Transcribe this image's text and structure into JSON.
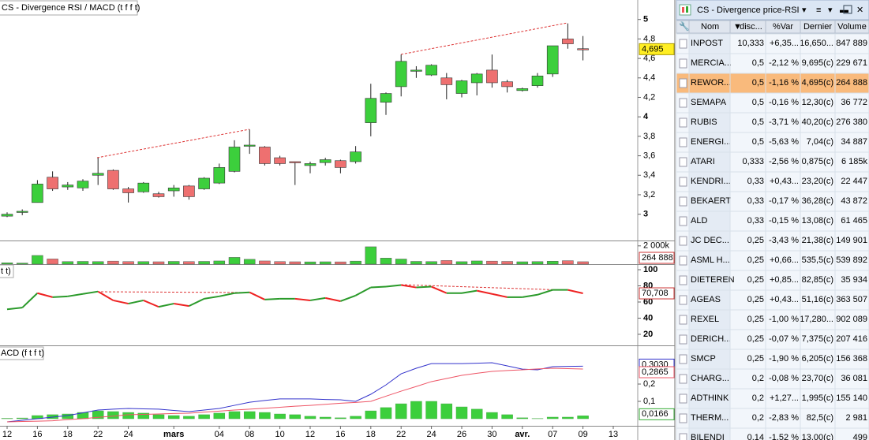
{
  "chart_data": [
    {
      "type": "candlestick",
      "title": "CS - Divergence RSI / MACD (t f f t)",
      "categories": [
        "12",
        null,
        "16",
        null,
        "18",
        null,
        "22",
        null,
        "24",
        null,
        null,
        "mars",
        null,
        null,
        "04",
        null,
        "08",
        null,
        "10",
        null,
        "12",
        null,
        "16",
        null,
        "18",
        null,
        "22",
        null,
        "24",
        null,
        "26",
        null,
        "30",
        null,
        "avr.",
        null,
        "07",
        null,
        "09",
        null,
        "13"
      ],
      "open": [
        2.98,
        3.02,
        3.12,
        3.38,
        3.28,
        3.27,
        3.4,
        3.45,
        3.26,
        3.23,
        3.21,
        3.24,
        3.29,
        3.26,
        3.32,
        3.44,
        3.7,
        3.69,
        3.58,
        3.54,
        3.5,
        3.53,
        3.55,
        3.54,
        3.94,
        4.15,
        4.31,
        4.47,
        4.43,
        4.4,
        4.24,
        4.35,
        4.48,
        4.36,
        4.27,
        4.32,
        4.44,
        4.8,
        4.7,
        null,
        null
      ],
      "high": [
        3.02,
        3.05,
        3.35,
        3.44,
        3.33,
        3.36,
        3.58,
        3.46,
        3.28,
        3.33,
        3.23,
        3.3,
        3.3,
        3.38,
        3.52,
        3.76,
        3.87,
        3.7,
        3.6,
        3.54,
        3.54,
        3.58,
        3.56,
        3.7,
        4.34,
        4.25,
        4.64,
        4.52,
        4.54,
        4.45,
        4.38,
        4.45,
        4.64,
        4.38,
        4.3,
        4.45,
        4.73,
        4.96,
        4.83,
        null,
        null
      ],
      "low": [
        2.97,
        2.99,
        3.12,
        3.24,
        3.25,
        3.24,
        3.3,
        3.25,
        3.12,
        3.22,
        3.17,
        3.18,
        3.15,
        3.25,
        3.31,
        3.43,
        3.62,
        3.5,
        3.5,
        3.3,
        3.42,
        3.5,
        3.42,
        3.52,
        3.8,
        4.02,
        4.21,
        4.4,
        4.42,
        4.18,
        4.2,
        4.22,
        4.3,
        4.25,
        4.26,
        4.3,
        4.41,
        4.7,
        4.58,
        null,
        null
      ],
      "close": [
        3.0,
        3.03,
        3.31,
        3.26,
        3.3,
        3.34,
        3.42,
        3.26,
        3.22,
        3.32,
        3.18,
        3.27,
        3.18,
        3.37,
        3.48,
        3.69,
        3.71,
        3.52,
        3.52,
        3.53,
        3.52,
        3.56,
        3.48,
        3.64,
        4.19,
        4.24,
        4.57,
        4.48,
        4.53,
        4.33,
        4.37,
        4.44,
        4.35,
        4.31,
        4.29,
        4.42,
        4.73,
        4.75,
        4.695,
        null,
        null
      ],
      "last_label": "4,695",
      "up_color": "#3ccf3c",
      "down_color": "#ee7070",
      "ylim": [
        2.73,
        5.2
      ],
      "yticks": [
        3,
        {
          "value": 3.2,
          "label": "3,2"
        },
        {
          "value": 3.4,
          "label": "3,4"
        },
        {
          "value": 3.6,
          "label": "3,6"
        },
        {
          "value": 3.8,
          "label": "3,8"
        },
        4,
        {
          "value": 4.2,
          "label": "4,2"
        },
        {
          "value": 4.4,
          "label": "4,4"
        },
        {
          "value": 4.6,
          "label": "4,6"
        },
        {
          "value": 4.8,
          "label": "4,8"
        },
        5
      ]
    },
    {
      "type": "bar",
      "values": [
        150000,
        120000,
        950000,
        570000,
        280000,
        300000,
        280000,
        330000,
        280000,
        280000,
        260000,
        300000,
        280000,
        300000,
        350000,
        740000,
        530000,
        350000,
        280000,
        260000,
        250000,
        260000,
        250000,
        330000,
        1900000,
        660000,
        560000,
        300000,
        280000,
        400000,
        270000,
        350000,
        330000,
        300000,
        260000,
        280000,
        320000,
        380000,
        264888
      ],
      "last_label": "264 888",
      "ylim": [
        0,
        2500000
      ],
      "yticks": [
        {
          "value": 2000000,
          "label": "2 000k"
        }
      ]
    },
    {
      "type": "line",
      "title": "t t)",
      "values": [
        51,
        53,
        71,
        66,
        67,
        70,
        73,
        62,
        58,
        62,
        54,
        58,
        55,
        64,
        67,
        71,
        72,
        63,
        64,
        64,
        62,
        65,
        61,
        68,
        78,
        79,
        81,
        78,
        79,
        71,
        71,
        74,
        70,
        66,
        66,
        69,
        75,
        75,
        70.708
      ],
      "last_label": "70,708",
      "up_color": "#2a9a2a",
      "down_color": "#ee2222",
      "ylim": [
        6.3,
        104.9
      ],
      "yticks": [
        20,
        40,
        60,
        80,
        100
      ]
    },
    {
      "type": "macd",
      "title": "ACD (f t f t)",
      "series": [
        {
          "color": "#3333cc",
          "last_label": "0,3030",
          "values": [
            -0.018,
            -0.009,
            0,
            0.009,
            0.018,
            0.034,
            0.05,
            0.055,
            0.059,
            0.057,
            0.055,
            0.048,
            0.041,
            0.05,
            0.059,
            0.077,
            0.095,
            0.105,
            0.114,
            0.114,
            0.114,
            0.111,
            0.109,
            0.1,
            0.141,
            0.195,
            0.259,
            0.291,
            0.318,
            0.318,
            0.318,
            0.32,
            0.323,
            0.305,
            0.286,
            0.282,
            0.3,
            0.302,
            0.303
          ]
        },
        {
          "color": "#ee5566",
          "last_label": "0,2865",
          "values": [
            -0.018,
            -0.016,
            -0.014,
            -0.012,
            -0.005,
            0,
            0.008,
            0.015,
            0.023,
            0.025,
            0.027,
            0.03,
            0.032,
            0.038,
            0.044,
            0.05,
            0.055,
            0.06,
            0.066,
            0.072,
            0.077,
            0.083,
            0.089,
            0.094,
            0.1,
            0.13,
            0.159,
            0.186,
            0.214,
            0.232,
            0.25,
            0.262,
            0.273,
            0.278,
            0.282,
            0.287,
            0.291,
            0.289,
            0.2865
          ]
        }
      ],
      "histogram": {
        "color": "#3ccf3c",
        "last_label": "0,0166",
        "values": [
          0.002,
          0.004,
          0.018,
          0.023,
          0.027,
          0.036,
          0.045,
          0.041,
          0.036,
          0.032,
          0.023,
          0.018,
          0.014,
          0.023,
          0.032,
          0.041,
          0.041,
          0.036,
          0.027,
          0.023,
          0.014,
          0.009,
          0.005,
          0.014,
          0.045,
          0.064,
          0.086,
          0.1,
          0.1,
          0.086,
          0.068,
          0.055,
          0.036,
          0.023,
          0.005,
          0.001,
          0.009,
          0.009,
          0.0166
        ]
      },
      "ylim": [
        -0.041,
        0.414
      ],
      "yticks": [
        {
          "value": 0.1,
          "label": "0,1"
        },
        {
          "value": 0.2,
          "label": "0,2"
        }
      ]
    }
  ],
  "watchlist": {
    "title": "CS - Divergence price-RSI",
    "columns": [
      "Nom",
      "disc...",
      "%Var",
      "Dernier",
      "Volume"
    ],
    "selected_row": 2,
    "rows": [
      [
        "INPOST",
        "10,333",
        "+6,35...",
        "16,650...",
        "847 889"
      ],
      [
        "MERCIA...",
        "0,5",
        "-2,12 %",
        "9,695(c)",
        "229 671"
      ],
      [
        "REWOR...",
        "0,5",
        "-1,16 %",
        "4,695(c)",
        "264 888"
      ],
      [
        "SEMAPA",
        "0,5",
        "-0,16 %",
        "12,30(c)",
        "36 772"
      ],
      [
        "RUBIS",
        "0,5",
        "-3,71 %",
        "40,20(c)",
        "276 380"
      ],
      [
        "ENERGI...",
        "0,5",
        "-5,63 %",
        "7,04(c)",
        "34 887"
      ],
      [
        "ATARI",
        "0,333",
        "-2,56 %",
        "0,875(c)",
        "6 185k"
      ],
      [
        "KENDRI...",
        "0,33",
        "+0,43...",
        "23,20(c)",
        "22 447"
      ],
      [
        "BEKAERT",
        "0,33",
        "-0,17 %",
        "36,28(c)",
        "43 872"
      ],
      [
        "ALD",
        "0,33",
        "-0,15 %",
        "13,08(c)",
        "61 465"
      ],
      [
        "JC DEC...",
        "0,25",
        "-3,43 %",
        "21,38(c)",
        "149 901"
      ],
      [
        "ASML H...",
        "0,25",
        "+0,66...",
        "535,5(c)",
        "539 892"
      ],
      [
        "DIETEREN",
        "0,25",
        "+0,85...",
        "82,85(c)",
        "35 934"
      ],
      [
        "AGEAS",
        "0,25",
        "+0,43...",
        "51,16(c)",
        "363 507"
      ],
      [
        "REXEL",
        "0,25",
        "-1,00 %",
        "17,280...",
        "902 089"
      ],
      [
        "DERICH...",
        "0,25",
        "-0,07 %",
        "7,375(c)",
        "207 416"
      ],
      [
        "SMCP",
        "0,25",
        "-1,90 %",
        "6,205(c)",
        "156 368"
      ],
      [
        "CHARG...",
        "0,2",
        "-0,08 %",
        "23,70(c)",
        "36 081"
      ],
      [
        "ADTHINK",
        "0,2",
        "+1,27...",
        "1,995(c)",
        "155 140"
      ],
      [
        "THERM...",
        "0,2",
        "-2,83 %",
        "82,5(c)",
        "2 981"
      ],
      [
        "BILENDI",
        "0,14",
        "-1,52 %",
        "13,00(c)",
        "499"
      ]
    ]
  }
}
